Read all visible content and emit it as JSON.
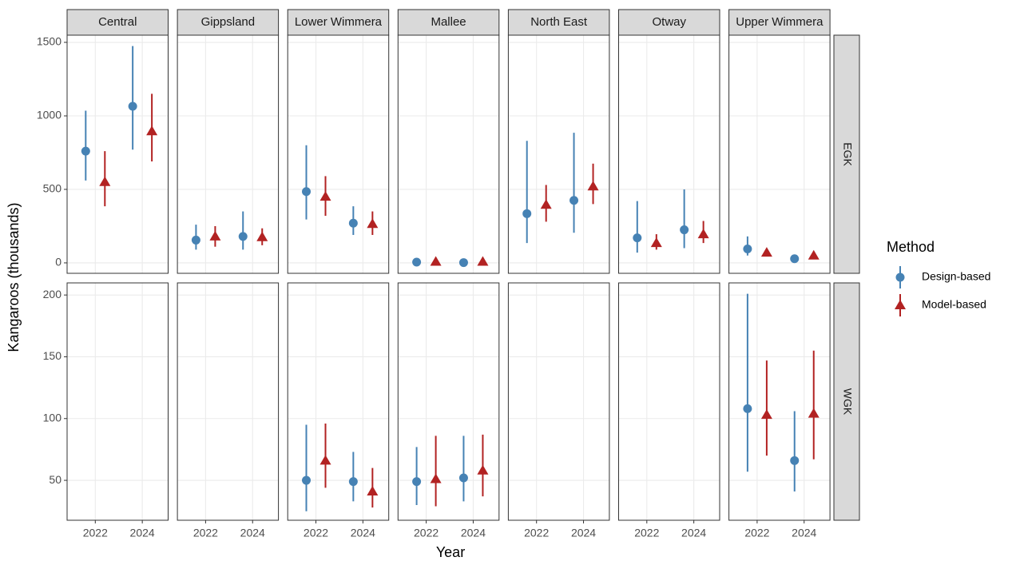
{
  "chart_data": {
    "type": "pointrange",
    "x_label": "Year",
    "y_label": "Kangaroos (thousands)",
    "legend_title": "Method",
    "legend_position": "right",
    "grid": true,
    "columns": [
      "Central",
      "Gippsland",
      "Lower Wimmera",
      "Mallee",
      "North East",
      "Otway",
      "Upper Wimmera"
    ],
    "rows": [
      {
        "name": "EGK",
        "ylim": [
          -71,
          1549
        ],
        "yticks": [
          0,
          500,
          1000,
          1500
        ]
      },
      {
        "name": "WGK",
        "ylim": [
          17.7,
          209.8
        ],
        "yticks": [
          50,
          100,
          150,
          200
        ]
      }
    ],
    "x": [
      2022,
      2024
    ],
    "xlim": [
      2020.8,
      2025.1
    ],
    "xticks": [
      2022,
      2024
    ],
    "series": [
      {
        "name": "Design-based",
        "color": "#4682b4",
        "marker": "circle",
        "values": [
          [
            [
              760,
              1065
            ],
            [
              155,
              180
            ],
            [
              485,
              270
            ],
            [
              5,
              2
            ],
            [
              335,
              425
            ],
            [
              170,
              225
            ],
            [
              95,
              28
            ]
          ],
          [
            [
              null,
              null
            ],
            [
              null,
              null
            ],
            [
              50,
              49
            ],
            [
              49,
              52
            ],
            [
              null,
              null
            ],
            [
              null,
              null
            ],
            [
              108,
              66
            ]
          ]
        ],
        "lower": [
          [
            [
              560,
              770
            ],
            [
              90,
              90
            ],
            [
              295,
              190
            ],
            [
              0,
              0
            ],
            [
              135,
              205
            ],
            [
              70,
              100
            ],
            [
              50,
              20
            ]
          ],
          [
            [
              null,
              null
            ],
            [
              null,
              null
            ],
            [
              25,
              33
            ],
            [
              30,
              33
            ],
            [
              null,
              null
            ],
            [
              null,
              null
            ],
            [
              57,
              41
            ]
          ]
        ],
        "upper": [
          [
            [
              1035,
              1475
            ],
            [
              260,
              350
            ],
            [
              800,
              385
            ],
            [
              10,
              5
            ],
            [
              830,
              885
            ],
            [
              420,
              500
            ],
            [
              180,
              38
            ]
          ],
          [
            [
              null,
              null
            ],
            [
              null,
              null
            ],
            [
              95,
              73
            ],
            [
              77,
              86
            ],
            [
              null,
              null
            ],
            [
              null,
              null
            ],
            [
              201,
              106
            ]
          ]
        ]
      },
      {
        "name": "Model-based",
        "color": "#b22222",
        "marker": "triangle",
        "values": [
          [
            [
              550,
              895
            ],
            [
              180,
              175
            ],
            [
              450,
              265
            ],
            [
              8,
              8
            ],
            [
              395,
              520
            ],
            [
              135,
              195
            ],
            [
              70,
              50
            ]
          ],
          [
            [
              null,
              null
            ],
            [
              null,
              null
            ],
            [
              66,
              41
            ],
            [
              51,
              58
            ],
            [
              null,
              null
            ],
            [
              null,
              null
            ],
            [
              103,
              104
            ]
          ]
        ],
        "lower": [
          [
            [
              385,
              690
            ],
            [
              110,
              120
            ],
            [
              320,
              190
            ],
            [
              0,
              0
            ],
            [
              280,
              400
            ],
            [
              90,
              135
            ],
            [
              55,
              40
            ]
          ],
          [
            [
              null,
              null
            ],
            [
              null,
              null
            ],
            [
              44,
              28
            ],
            [
              29,
              37
            ],
            [
              null,
              null
            ],
            [
              null,
              null
            ],
            [
              70,
              67
            ]
          ]
        ],
        "upper": [
          [
            [
              760,
              1150
            ],
            [
              250,
              235
            ],
            [
              590,
              350
            ],
            [
              15,
              15
            ],
            [
              530,
              675
            ],
            [
              195,
              285
            ],
            [
              85,
              65
            ]
          ],
          [
            [
              null,
              null
            ],
            [
              null,
              null
            ],
            [
              96,
              60
            ],
            [
              86,
              87
            ],
            [
              null,
              null
            ],
            [
              null,
              null
            ],
            [
              147,
              155
            ]
          ]
        ]
      }
    ]
  }
}
